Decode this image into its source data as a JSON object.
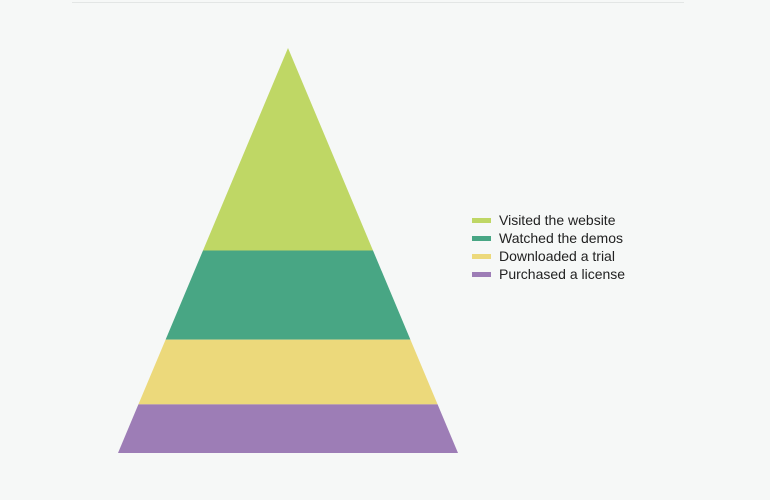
{
  "chart_data": {
    "type": "pyramid",
    "title": "",
    "categories": [
      "Visited the website",
      "Watched the demos",
      "Downloaded a trial",
      "Purchased a license"
    ],
    "series": [
      {
        "values": [
          50,
          22,
          16,
          12
        ]
      }
    ],
    "colors": [
      "#bfd765",
      "#48a684",
      "#ecd97b",
      "#9d7db6"
    ],
    "legend": {
      "position": "right",
      "items": [
        {
          "label": "Visited the website",
          "color": "#bfd765"
        },
        {
          "label": "Watched the demos",
          "color": "#48a684"
        },
        {
          "label": "Downloaded a trial",
          "color": "#ecd97b"
        },
        {
          "label": "Purchased a license",
          "color": "#9d7db6"
        }
      ]
    }
  }
}
